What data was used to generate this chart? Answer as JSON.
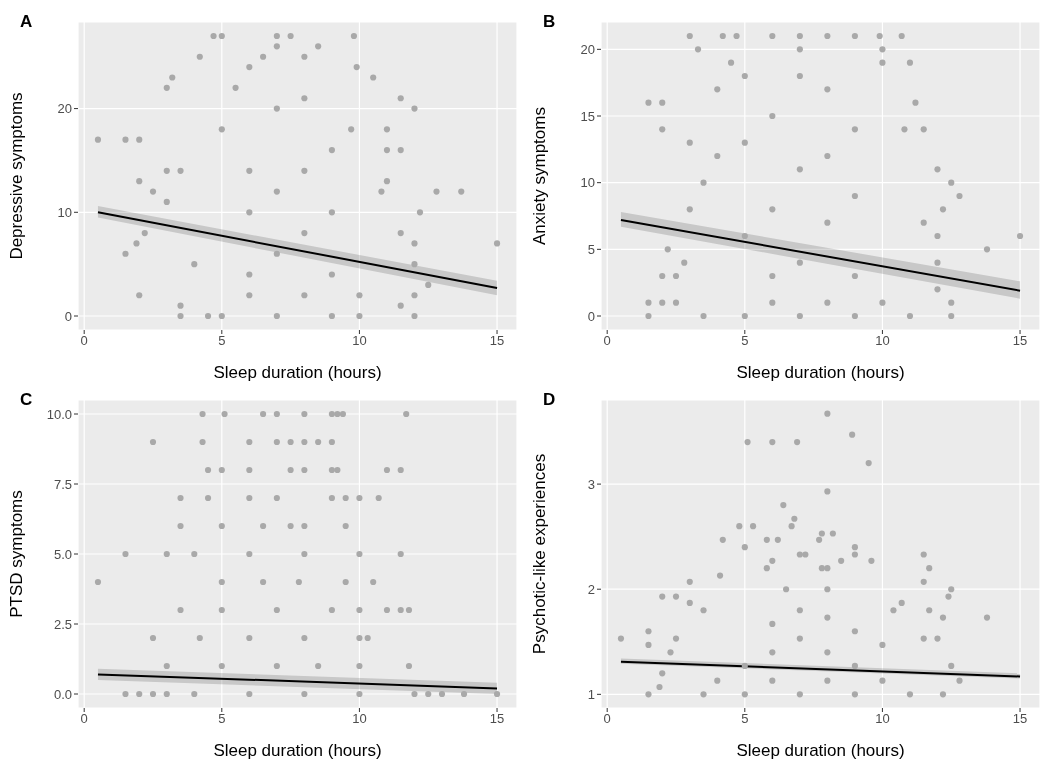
{
  "chart_data": [
    {
      "type": "scatter",
      "title": "A",
      "xlabel": "Sleep duration (hours)",
      "ylabel": "Depressive symptoms",
      "xlim": [
        -0.225,
        15.725
      ],
      "xticks": [
        0,
        5,
        10,
        15
      ],
      "ylim": [
        -1.35,
        28.35
      ],
      "yticks": [
        0,
        10,
        20
      ],
      "grid": true,
      "series": [
        {
          "color": "#a9a9a9",
          "marker": "circle",
          "x": [
            0.5,
            1.5,
            2,
            1.5,
            1.9,
            2,
            2.2,
            2.5,
            2,
            3,
            3.2,
            4.2,
            4.7,
            5,
            7,
            7,
            7.5,
            8.5,
            9.8,
            6.5,
            8,
            6,
            9.9,
            10.5,
            11.5,
            12,
            13.7,
            12.8,
            12.2,
            15,
            12.5,
            3.5,
            3.5,
            4.5,
            12,
            11.5,
            12,
            12,
            12,
            3,
            3.5,
            5,
            9.7,
            11,
            11,
            11.5,
            5,
            7,
            9,
            10,
            6,
            8,
            10,
            6,
            9,
            7,
            8,
            6,
            9,
            7,
            8,
            6,
            9,
            7,
            8,
            5.5,
            3,
            11.5,
            4,
            10.8,
            11
          ],
          "values": [
            17,
            17,
            17,
            6,
            7,
            2,
            8,
            12,
            13,
            22,
            23,
            25,
            27,
            27,
            27,
            26,
            27,
            26,
            27,
            25,
            25,
            24,
            24,
            23,
            21,
            20,
            12,
            12,
            10,
            7,
            3,
            0,
            1,
            0,
            0,
            1,
            2,
            5,
            7,
            11,
            14,
            18,
            18,
            18,
            16,
            16,
            0,
            0,
            0,
            0,
            2,
            2,
            2,
            4,
            4,
            6,
            8,
            10,
            10,
            12,
            14,
            14,
            16,
            20,
            21,
            22,
            14,
            8,
            5,
            12,
            13
          ]
        },
        {
          "type": "line",
          "color": "#000000",
          "marker": "none",
          "line_style": "solid",
          "x": [
            0.5,
            15
          ],
          "values": [
            10.0,
            2.7
          ],
          "lower": [
            9.5,
            2.0
          ],
          "upper": [
            10.6,
            3.4
          ]
        }
      ]
    },
    {
      "type": "scatter",
      "title": "B",
      "xlabel": "Sleep duration (hours)",
      "ylabel": "Anxiety symptoms",
      "xlim": [
        -0.225,
        15.725
      ],
      "xticks": [
        0,
        5,
        10,
        15
      ],
      "ylim": [
        -1.05,
        22.05
      ],
      "yticks": [
        0,
        5,
        10,
        15,
        20
      ],
      "grid": true,
      "series": [
        {
          "color": "#a9a9a9",
          "marker": "circle",
          "x": [
            1.5,
            2,
            2,
            1.5,
            2,
            2.5,
            1.5,
            2,
            2.5,
            2.8,
            2.2,
            3,
            4.2,
            4.7,
            6,
            7,
            8,
            9,
            9.9,
            10.7,
            3.3,
            7,
            10,
            4.5,
            11,
            11.2,
            10.8,
            11.5,
            12,
            12.5,
            12.8,
            12.2,
            13.8,
            15,
            12.5,
            12.5,
            3.5,
            12,
            11.5,
            5,
            7,
            9,
            11,
            6,
            8,
            10,
            6,
            9,
            7,
            5,
            8,
            6,
            9,
            7,
            8,
            5,
            9,
            6,
            8,
            5,
            7,
            4,
            3,
            3,
            3.5,
            4,
            12,
            12,
            10
          ],
          "values": [
            16,
            16,
            14,
            1,
            1,
            1,
            0,
            3,
            3,
            4,
            5,
            21,
            21,
            21,
            21,
            21,
            21,
            21,
            21,
            21,
            20,
            20,
            20,
            19,
            19,
            16,
            14,
            14,
            11,
            10,
            9,
            8,
            5,
            6,
            1,
            0,
            0,
            2,
            7,
            0,
            0,
            0,
            0,
            1,
            1,
            1,
            3,
            3,
            4,
            6,
            7,
            8,
            9,
            11,
            12,
            13,
            14,
            15,
            17,
            18,
            18,
            17,
            13,
            8,
            10,
            12,
            4,
            6,
            19
          ]
        },
        {
          "type": "line",
          "color": "#000000",
          "marker": "none",
          "line_style": "solid",
          "x": [
            0.5,
            15
          ],
          "values": [
            7.2,
            1.9
          ],
          "lower": [
            6.7,
            1.3
          ],
          "upper": [
            7.8,
            2.6
          ]
        }
      ]
    },
    {
      "type": "scatter",
      "title": "C",
      "xlabel": "Sleep duration (hours)",
      "ylabel": "PTSD symptoms",
      "xlim": [
        -0.225,
        15.725
      ],
      "xticks": [
        0,
        5,
        10,
        15
      ],
      "ylim": [
        -0.5,
        10.5
      ],
      "yticks": [
        {
          "value": 0,
          "label": "0.0"
        },
        2.5,
        {
          "value": 5,
          "label": "5.0"
        },
        7.5,
        {
          "value": 10,
          "label": "10.0"
        }
      ],
      "grid": true,
      "series": [
        {
          "color": "#a9a9a9",
          "marker": "circle",
          "x": [
            0.5,
            1.5,
            1.5,
            2,
            2.5,
            3,
            4,
            6,
            8,
            10,
            12,
            12.5,
            13,
            13.8,
            15,
            2.5,
            2.5,
            3,
            3,
            3.5,
            3.5,
            3.5,
            4.3,
            5.1,
            6.5,
            7,
            8,
            9,
            9.2,
            9.4,
            11.7,
            4.3,
            6,
            7,
            7.5,
            8,
            8.5,
            9,
            4.5,
            5,
            6,
            7.5,
            8,
            9,
            9.2,
            11,
            11.5,
            4.5,
            6,
            7,
            9,
            9.5,
            10,
            10.7,
            5,
            6.5,
            7.5,
            8,
            9.5,
            4,
            6,
            8,
            10,
            11.5,
            5,
            6.5,
            7.8,
            9.5,
            10.5,
            5,
            7,
            9,
            10,
            11,
            11.5,
            11.8,
            4.2,
            6,
            8,
            10,
            10.3,
            5,
            7,
            8.5,
            10,
            11.8
          ],
          "values": [
            4,
            5,
            0,
            0,
            0,
            0,
            0,
            0,
            0,
            0,
            0,
            0,
            0,
            0,
            0,
            2,
            9,
            1,
            5,
            3,
            6,
            7,
            10,
            10,
            10,
            10,
            10,
            10,
            10,
            10,
            10,
            9,
            9,
            9,
            9,
            9,
            9,
            9,
            8,
            8,
            8,
            8,
            8,
            8,
            8,
            8,
            8,
            7,
            7,
            7,
            7,
            7,
            7,
            7,
            6,
            6,
            6,
            6,
            6,
            5,
            5,
            5,
            5,
            5,
            4,
            4,
            4,
            4,
            4,
            3,
            3,
            3,
            3,
            3,
            3,
            3,
            2,
            2,
            2,
            2,
            2,
            1,
            1,
            1,
            1,
            1
          ]
        },
        {
          "type": "line",
          "color": "#000000",
          "marker": "none",
          "line_style": "solid",
          "x": [
            0.5,
            15
          ],
          "values": [
            0.7,
            0.2
          ],
          "lower": [
            0.5,
            0.0
          ],
          "upper": [
            0.9,
            0.4
          ]
        }
      ]
    },
    {
      "type": "scatter",
      "title": "D",
      "xlabel": "Sleep duration (hours)",
      "ylabel": "Psychotic-like experiences",
      "xlim": [
        -0.225,
        15.725
      ],
      "xticks": [
        0,
        5,
        10,
        15
      ],
      "ylim": [
        0.87,
        3.8
      ],
      "yticks": [
        1,
        2,
        3
      ],
      "grid": true,
      "series": [
        {
          "color": "#a9a9a9",
          "marker": "circle",
          "x": [
            0.5,
            1.5,
            1.5,
            1.5,
            2,
            2.5,
            2.5,
            2.3,
            2,
            1.9,
            3,
            3,
            3.5,
            4.2,
            4.1,
            4.8,
            5.1,
            6,
            6.9,
            8,
            8.9,
            9.5,
            8,
            6.4,
            6.8,
            6.7,
            5.3,
            7.8,
            8.2,
            5.8,
            6.2,
            7.7,
            5,
            9,
            9,
            7,
            7.2,
            6,
            8.5,
            9.6,
            5.8,
            7.8,
            8,
            11.7,
            11.5,
            11.5,
            12.5,
            12.4,
            12.2,
            13.8,
            12.5,
            12.8,
            12.2,
            10.7,
            10.4,
            11.7,
            3.5,
            5,
            7,
            9,
            11,
            4,
            6,
            8,
            10,
            5,
            9,
            6,
            8,
            10,
            7,
            9,
            6,
            8,
            7,
            8,
            6.5,
            12,
            11.5
          ],
          "values": [
            1.53,
            1.6,
            1.47,
            1.0,
            1.93,
            1.93,
            1.53,
            1.4,
            1.2,
            1.07,
            2.07,
            1.87,
            1.8,
            2.47,
            2.13,
            2.6,
            3.4,
            3.4,
            3.4,
            3.67,
            3.47,
            3.2,
            2.93,
            2.8,
            2.67,
            2.6,
            2.6,
            2.53,
            2.53,
            2.47,
            2.47,
            2.47,
            2.4,
            2.4,
            2.33,
            2.33,
            2.33,
            2.27,
            2.27,
            2.27,
            2.2,
            2.2,
            2.2,
            2.2,
            2.33,
            2.07,
            2.0,
            1.93,
            1.73,
            1.73,
            1.27,
            1.13,
            1.0,
            1.87,
            1.8,
            1.8,
            1.0,
            1.0,
            1.0,
            1.0,
            1.0,
            1.13,
            1.13,
            1.13,
            1.13,
            1.27,
            1.27,
            1.4,
            1.4,
            1.47,
            1.53,
            1.6,
            1.67,
            1.73,
            1.8,
            2.0,
            2.0,
            1.53,
            1.53
          ]
        },
        {
          "type": "line",
          "color": "#000000",
          "marker": "none",
          "line_style": "solid",
          "x": [
            0.5,
            15
          ],
          "values": [
            1.31,
            1.17
          ],
          "lower": [
            1.29,
            1.15
          ],
          "upper": [
            1.34,
            1.2
          ]
        }
      ]
    }
  ]
}
